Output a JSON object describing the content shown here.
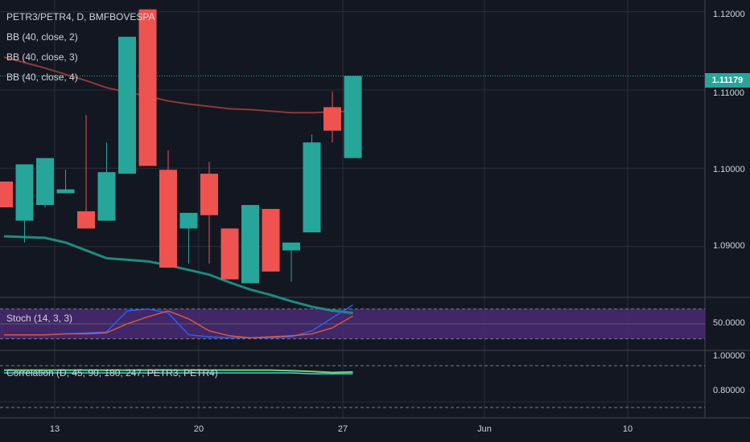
{
  "main": {
    "title": "PETR3/PETR4, D, BMFBOVESPA",
    "indicators": [
      "BB (40, close, 2)",
      "BB (40, close, 3)",
      "BB (40, close, 4)"
    ],
    "last_price": "1.11179",
    "price_ticks": [
      "1.12000",
      "1.11000",
      "1.10000",
      "1.09000"
    ]
  },
  "stoch": {
    "label": "Stoch (14, 3, 3)",
    "tick": "50.0000"
  },
  "correlation": {
    "label": "Correlation (D, 45, 90, 180, 247, PETR3, PETR4)",
    "ticks": [
      "1.00000",
      "0.80000"
    ]
  },
  "xaxis": {
    "labels": [
      "13",
      "20",
      "27",
      "Jun",
      "10"
    ]
  },
  "colors": {
    "background": "#131722",
    "up": "#26a69a",
    "down": "#ef5350",
    "bb_mid": "#8d3a35",
    "bb_lower": "#1f8a80",
    "stoch_k": "#2962ff",
    "stoch_d": "#e0583f",
    "stoch_band": "#4a2a73",
    "corr_line1": "#6fd66f",
    "corr_line2": "#4bd3d8"
  },
  "chart_data": {
    "type": "candlestick",
    "title": "PETR3/PETR4, D, BMFBOVESPA",
    "ylim": [
      1.0835,
      1.1215
    ],
    "candles": [
      {
        "o": 1.0983,
        "h": 1.0983,
        "l": 1.095,
        "c": 1.095
      },
      {
        "o": 1.0933,
        "h": 1.1005,
        "l": 1.0905,
        "c": 1.1005
      },
      {
        "o": 1.0953,
        "h": 1.1013,
        "l": 1.095,
        "c": 1.1013
      },
      {
        "o": 1.0968,
        "h": 1.0998,
        "l": 1.0968,
        "c": 1.0973
      },
      {
        "o": 1.0945,
        "h": 1.1068,
        "l": 1.0923,
        "c": 1.0923
      },
      {
        "o": 1.0933,
        "h": 1.1033,
        "l": 1.0933,
        "c": 1.0995
      },
      {
        "o": 1.0993,
        "h": 1.1168,
        "l": 1.0993,
        "c": 1.1168
      },
      {
        "o": 1.1203,
        "h": 1.1203,
        "l": 1.1003,
        "c": 1.1003
      },
      {
        "o": 1.0998,
        "h": 1.1023,
        "l": 1.0873,
        "c": 1.0873
      },
      {
        "o": 1.0923,
        "h": 1.0943,
        "l": 1.0878,
        "c": 1.0943
      },
      {
        "o": 1.0993,
        "h": 1.1008,
        "l": 1.0878,
        "c": 1.094
      },
      {
        "o": 1.0923,
        "h": 1.0923,
        "l": 1.0858,
        "c": 1.0858
      },
      {
        "o": 1.0853,
        "h": 1.0953,
        "l": 1.0853,
        "c": 1.0953
      },
      {
        "o": 1.0948,
        "h": 1.0948,
        "l": 1.0868,
        "c": 1.0868
      },
      {
        "o": 1.0895,
        "h": 1.0905,
        "l": 1.0855,
        "c": 1.0905
      },
      {
        "o": 1.0918,
        "h": 1.1043,
        "l": 1.0918,
        "c": 1.1033
      },
      {
        "o": 1.1078,
        "h": 1.1098,
        "l": 1.1033,
        "c": 1.1048
      },
      {
        "o": 1.1013,
        "h": 1.1118,
        "l": 1.1013,
        "c": 1.1118
      }
    ],
    "bb_mid": [
      1.1142,
      1.1135,
      1.1128,
      1.112,
      1.1112,
      1.1103,
      1.1097,
      1.1092,
      1.1086,
      1.1082,
      1.1079,
      1.1076,
      1.1075,
      1.1073,
      1.1071,
      1.1071,
      1.1072,
      1.1073
    ],
    "bb_lower": [
      1.0913,
      1.0912,
      1.0911,
      1.0905,
      1.0895,
      1.0885,
      1.0883,
      1.0881,
      1.0876,
      1.087,
      1.0864,
      1.0854,
      1.0845,
      1.0838,
      1.083,
      1.0823,
      1.0818,
      1.0815
    ],
    "stoch": {
      "ylim": [
        0,
        100
      ],
      "k": [
        28,
        28,
        28,
        30,
        32,
        34,
        76,
        80,
        72,
        28,
        24,
        22,
        22,
        22,
        24,
        36,
        62,
        88
      ],
      "d": [
        28,
        28,
        28,
        30,
        30,
        32,
        50,
        64,
        76,
        60,
        36,
        26,
        22,
        24,
        26,
        30,
        42,
        66
      ]
    },
    "correlation": {
      "ylim": [
        0.72,
        1.08
      ],
      "series1": [
        0.96,
        0.96,
        0.96,
        0.96,
        0.96,
        0.96,
        0.96,
        0.96,
        0.96,
        0.96,
        0.96,
        0.96,
        0.96,
        0.96,
        0.96,
        0.955,
        0.955,
        0.955
      ],
      "series2": [
        0.975,
        0.975,
        0.975,
        0.975,
        0.975,
        0.975,
        0.975,
        0.975,
        0.975,
        0.975,
        0.975,
        0.975,
        0.975,
        0.975,
        0.972,
        0.968,
        0.962,
        0.965
      ]
    }
  }
}
